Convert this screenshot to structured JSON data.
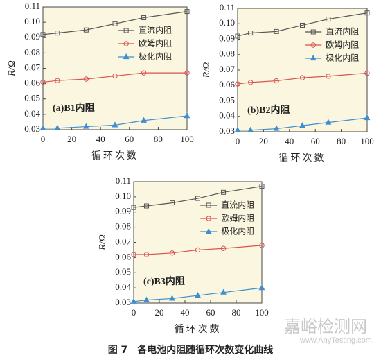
{
  "chart_data": [
    {
      "type": "line",
      "annotation": "(a)B1内阻",
      "y_label": "R/Ω",
      "x_label": "循环次数",
      "x": [
        0,
        10,
        30,
        50,
        70,
        100
      ],
      "xlim": [
        0,
        100
      ],
      "xticks": [
        0,
        20,
        40,
        60,
        80,
        100
      ],
      "ylim": [
        0.03,
        0.11
      ],
      "yticks": [
        0.03,
        0.04,
        0.05,
        0.06,
        0.07,
        0.08,
        0.09,
        {
          "value": 0.1,
          "label": "0.10"
        },
        0.11
      ],
      "legend": "upper right",
      "grid": false,
      "background": "#fbf6df",
      "series": [
        {
          "name": "直流内阻",
          "color": "#555555",
          "marker": "square",
          "values": [
            0.092,
            0.093,
            0.095,
            0.099,
            0.103,
            0.107
          ]
        },
        {
          "name": "欧姆内阻",
          "color": "#d9534f",
          "marker": "circle",
          "values": [
            0.061,
            0.062,
            0.063,
            0.065,
            0.067,
            0.067
          ]
        },
        {
          "name": "极化内阻",
          "color": "#3f8fcf",
          "marker": "triangle",
          "values": [
            0.031,
            0.031,
            0.032,
            0.033,
            0.036,
            0.039
          ]
        }
      ]
    },
    {
      "type": "line",
      "annotation": "(b)B2内阻",
      "y_label": "R/Ω",
      "x_label": "循环次数",
      "x": [
        0,
        10,
        30,
        50,
        70,
        100
      ],
      "xlim": [
        0,
        100
      ],
      "xticks": [
        0,
        20,
        40,
        60,
        80,
        100
      ],
      "ylim": [
        0.03,
        0.11
      ],
      "yticks": [
        0.03,
        0.04,
        0.05,
        0.06,
        0.07,
        0.08,
        0.09,
        {
          "value": 0.1,
          "label": "0.10"
        },
        0.11
      ],
      "legend": "upper right",
      "grid": false,
      "background": "#fbf6df",
      "series": [
        {
          "name": "直流内阻",
          "color": "#555555",
          "marker": "square",
          "values": [
            0.092,
            0.094,
            0.095,
            0.099,
            0.103,
            0.107
          ]
        },
        {
          "name": "欧姆内阻",
          "color": "#d9534f",
          "marker": "circle",
          "values": [
            0.061,
            0.062,
            0.063,
            0.065,
            0.066,
            0.068
          ]
        },
        {
          "name": "极化内阻",
          "color": "#3f8fcf",
          "marker": "triangle",
          "values": [
            0.031,
            0.031,
            0.032,
            0.034,
            0.036,
            0.039
          ]
        }
      ]
    },
    {
      "type": "line",
      "annotation": "(c)B3内阻",
      "y_label": "R/Ω",
      "x_label": "循环次数",
      "x": [
        0,
        10,
        30,
        50,
        70,
        100
      ],
      "xlim": [
        0,
        100
      ],
      "xticks": [
        0,
        20,
        40,
        60,
        80,
        100
      ],
      "ylim": [
        0.03,
        0.11
      ],
      "yticks": [
        0.03,
        0.04,
        0.05,
        0.06,
        0.07,
        0.08,
        0.09,
        {
          "value": 0.1,
          "label": "0.10"
        },
        0.11
      ],
      "legend": "upper right",
      "grid": false,
      "background": "#fbf6df",
      "series": [
        {
          "name": "直流内阻",
          "color": "#555555",
          "marker": "square",
          "values": [
            0.093,
            0.094,
            0.096,
            0.099,
            0.103,
            0.107
          ]
        },
        {
          "name": "欧姆内阻",
          "color": "#d9534f",
          "marker": "circle",
          "values": [
            0.062,
            0.062,
            0.063,
            0.065,
            0.066,
            0.068
          ]
        },
        {
          "name": "极化内阻",
          "color": "#3f8fcf",
          "marker": "triangle",
          "values": [
            0.031,
            0.032,
            0.033,
            0.035,
            0.037,
            0.04
          ]
        }
      ]
    }
  ],
  "caption": "图 7　各电池内阻随循环次数变化曲线",
  "watermark": {
    "name": "嘉峪检测网",
    "url": "www.AnyTesting.com"
  }
}
